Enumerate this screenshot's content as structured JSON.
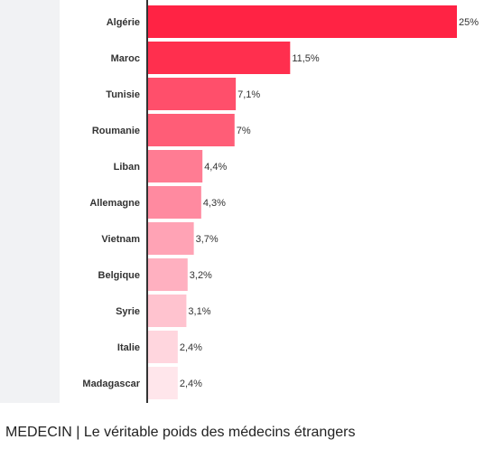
{
  "caption": "MEDECIN | Le véritable poids des médecins étrangers",
  "chart_data": {
    "type": "bar",
    "orientation": "horizontal",
    "categories": [
      "Algérie",
      "Maroc",
      "Tunisie",
      "Roumanie",
      "Liban",
      "Allemagne",
      "Vietnam",
      "Belgique",
      "Syrie",
      "Italie",
      "Madagascar"
    ],
    "values": [
      25,
      11.5,
      7.1,
      7,
      4.4,
      4.3,
      3.7,
      3.2,
      3.1,
      2.4,
      2.4
    ],
    "value_labels": [
      "25%",
      "11,5%",
      "7,1%",
      "7%",
      "4,4%",
      "4,3%",
      "3,7%",
      "3,2%",
      "3,1%",
      "2,4%",
      "2,4%"
    ],
    "unit": "%",
    "title": "",
    "xlabel": "",
    "ylabel": "",
    "xlim": [
      0,
      25
    ],
    "grid": false,
    "colors": [
      "#ff2344",
      "#ff2f4e",
      "#ff4f6b",
      "#ff5d77",
      "#ff7c93",
      "#ff8aa0",
      "#ffa3b5",
      "#ffb0c0",
      "#ffc3cf",
      "#ffd6de",
      "#ffe6eb"
    ]
  }
}
